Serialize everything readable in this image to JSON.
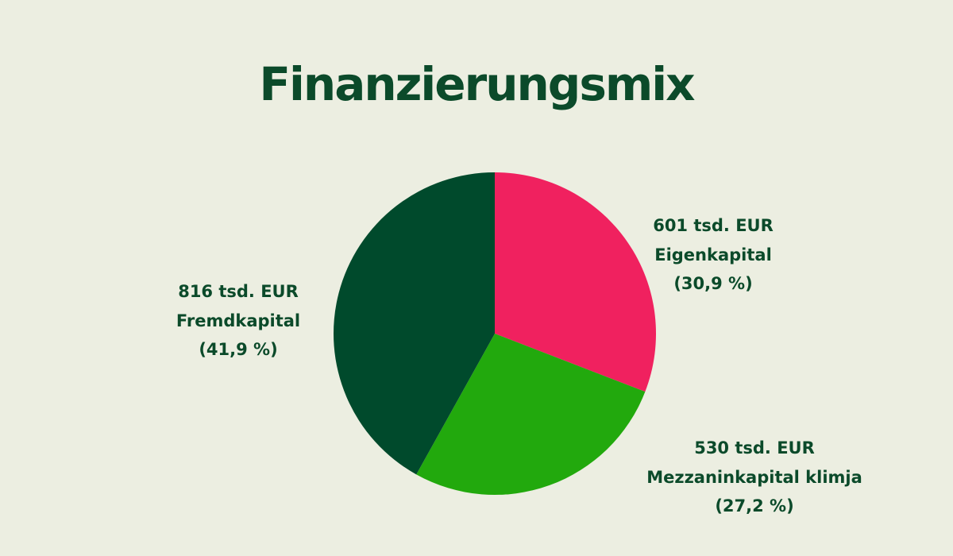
{
  "chart_data": {
    "type": "pie",
    "title": "Finanzierungsmix",
    "categories": [
      "Eigenkapital",
      "Mezzaninkapital klimja",
      "Fremdkapital"
    ],
    "values": [
      601,
      530,
      816
    ],
    "value_labels": [
      "601 tsd. EUR",
      "530 tsd. EUR",
      "816 tsd. EUR"
    ],
    "percent_labels": [
      "(30,9 %)",
      "(27,2 %)",
      "(41,9 %)"
    ],
    "colors": [
      "#f0215f",
      "#22a90d",
      "#004a2c"
    ]
  }
}
